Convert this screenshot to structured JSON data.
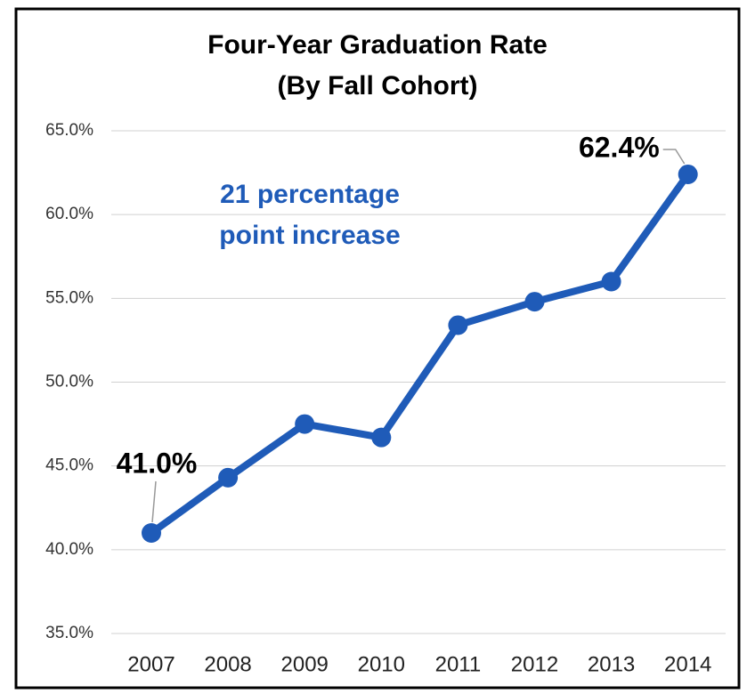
{
  "chart_data": {
    "type": "line",
    "title": "Four-Year Graduation Rate",
    "subtitle": "(By Fall Cohort)",
    "annotation": [
      "21 percentage",
      "point increase"
    ],
    "categories": [
      "2007",
      "2008",
      "2009",
      "2010",
      "2011",
      "2012",
      "2013",
      "2014"
    ],
    "series": [
      {
        "name": "Four-Year Graduation Rate",
        "color": "#1f5bb8",
        "values": [
          41.0,
          44.3,
          47.5,
          46.7,
          53.4,
          54.8,
          56.0,
          62.4
        ],
        "value_labels": [
          "41.0%",
          null,
          null,
          null,
          null,
          null,
          null,
          "62.4%"
        ]
      }
    ],
    "ylim": [
      35,
      65
    ],
    "yticks": [
      {
        "value": 35,
        "label": "35.0%"
      },
      {
        "value": 40,
        "label": "40.0%"
      },
      {
        "value": 45,
        "label": "45.0%"
      },
      {
        "value": 50,
        "label": "50.0%"
      },
      {
        "value": 55,
        "label": "55.0%"
      },
      {
        "value": 60,
        "label": "60.0%"
      },
      {
        "value": 65,
        "label": "65.0%"
      }
    ],
    "grid": true
  }
}
